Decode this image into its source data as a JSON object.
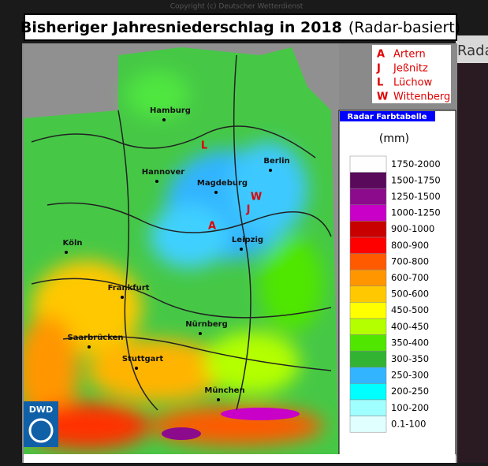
{
  "header": {
    "title": "Bisheriger Jahresniederschlag in 2018",
    "subtitle": "(Radar-basiert)"
  },
  "copyright": "Copyright (c) Deutscher Wetterdienst",
  "side_text": "Rada",
  "stations": [
    {
      "code": "A",
      "name": "Artern"
    },
    {
      "code": "J",
      "name": "Jeßnitz"
    },
    {
      "code": "L",
      "name": "Lüchow"
    },
    {
      "code": "W",
      "name": "Wittenberg"
    }
  ],
  "cities": [
    "Hamburg",
    "Berlin",
    "Hannover",
    "Magdeburg",
    "Leipzig",
    "Köln",
    "Frankfurt",
    "Nürnberg",
    "Saarbrücken",
    "Stuttgart",
    "München"
  ],
  "map_markers": [
    "L",
    "W",
    "J",
    "A"
  ],
  "legend": {
    "title": "Radar Farbtabelle",
    "unit": "(mm)",
    "bins": [
      {
        "label": "1750-2000",
        "color": "#fefefe"
      },
      {
        "label": "1500-1750",
        "color": "#5a0a5a"
      },
      {
        "label": "1250-1500",
        "color": "#8c0a8c"
      },
      {
        "label": "1000-1250",
        "color": "#c800c8"
      },
      {
        "label": "900-1000",
        "color": "#c80000"
      },
      {
        "label": "800-900",
        "color": "#ff0000"
      },
      {
        "label": "700-800",
        "color": "#ff5a00"
      },
      {
        "label": "600-700",
        "color": "#ff9600"
      },
      {
        "label": "500-600",
        "color": "#ffc800"
      },
      {
        "label": "450-500",
        "color": "#ffff00"
      },
      {
        "label": "400-450",
        "color": "#b4ff00"
      },
      {
        "label": "350-400",
        "color": "#50e600"
      },
      {
        "label": "300-350",
        "color": "#32b432"
      },
      {
        "label": "250-300",
        "color": "#32b4ff"
      },
      {
        "label": "200-250",
        "color": "#00ffff"
      },
      {
        "label": "100-200",
        "color": "#a0ffff"
      },
      {
        "label": "0.1-100",
        "color": "#e0ffff"
      }
    ]
  },
  "logo": "DWD"
}
